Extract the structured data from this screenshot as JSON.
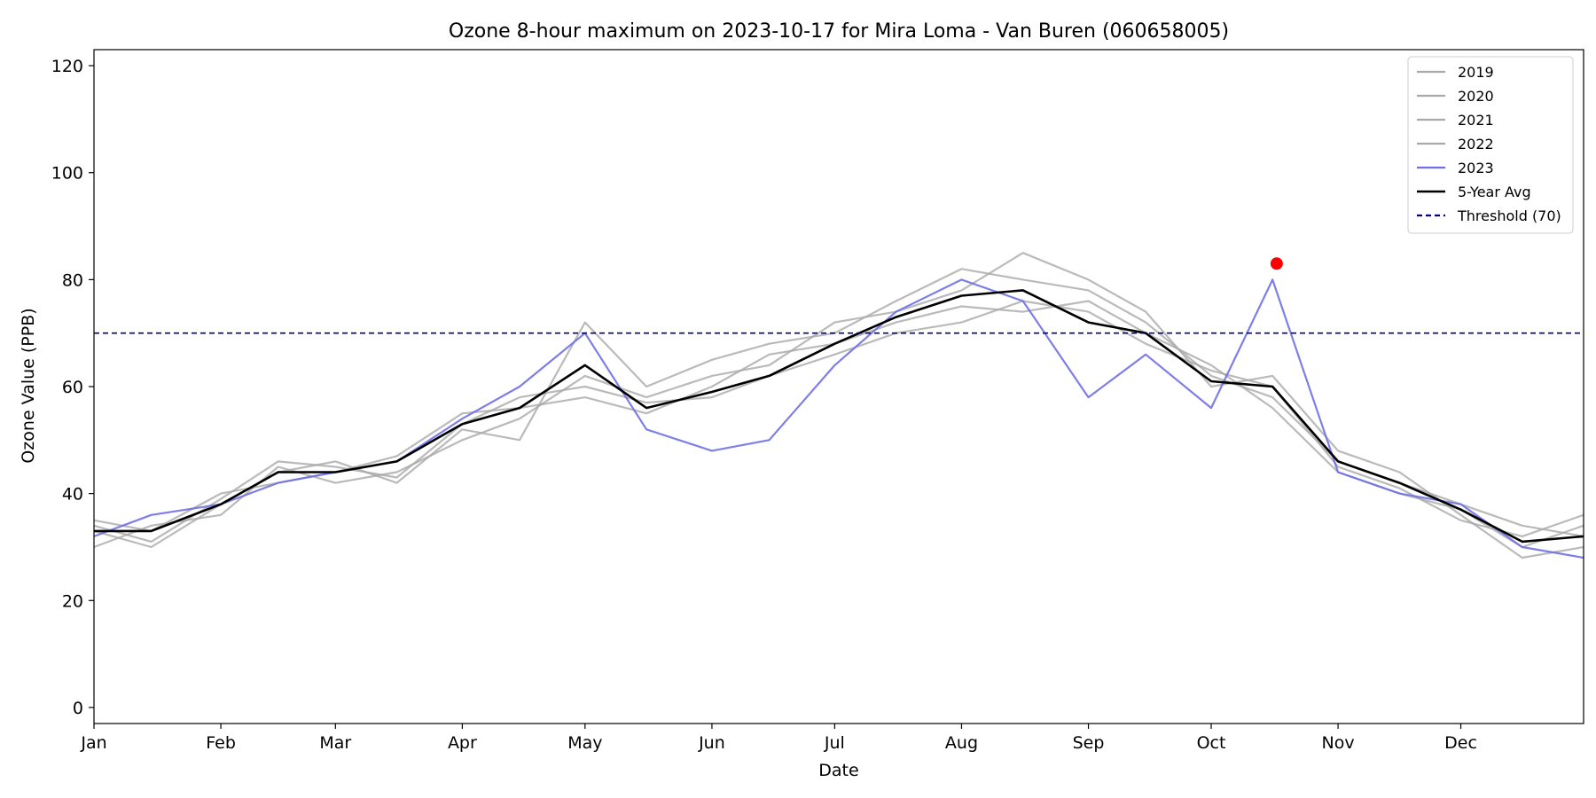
{
  "chart_data": {
    "type": "line",
    "title": "Ozone 8-hour maximum on 2023-10-17 for Mira Loma - Van Buren (060658005)",
    "xlabel": "Date",
    "ylabel": "Ozone Value (PPB)",
    "x_unit": "day of year (2023 calendar)",
    "xlim": [
      1,
      365
    ],
    "ylim": [
      -3,
      123
    ],
    "x_ticks": [
      {
        "label": "Jan",
        "day": 1
      },
      {
        "label": "Feb",
        "day": 32
      },
      {
        "label": "Mar",
        "day": 60
      },
      {
        "label": "Apr",
        "day": 91
      },
      {
        "label": "May",
        "day": 121
      },
      {
        "label": "Jun",
        "day": 152
      },
      {
        "label": "Jul",
        "day": 182
      },
      {
        "label": "Aug",
        "day": 213
      },
      {
        "label": "Sep",
        "day": 244
      },
      {
        "label": "Oct",
        "day": 274
      },
      {
        "label": "Nov",
        "day": 305
      },
      {
        "label": "Dec",
        "day": 335
      }
    ],
    "y_ticks": [
      0,
      20,
      40,
      60,
      80,
      100,
      120
    ],
    "grid": false,
    "legend_position": "top-right",
    "series": [
      {
        "name": "2019",
        "color": "#a9a9a9",
        "style": "solid",
        "x": [
          1,
          15,
          32,
          46,
          60,
          75,
          91,
          105,
          121,
          136,
          152,
          166,
          182,
          197,
          213,
          228,
          244,
          258,
          274,
          289,
          305,
          320,
          335,
          350,
          365
        ],
        "y": [
          33,
          30,
          38,
          44,
          46,
          42,
          52,
          50,
          72,
          60,
          65,
          68,
          70,
          76,
          82,
          80,
          78,
          72,
          62,
          58,
          46,
          42,
          38,
          34,
          32
        ]
      },
      {
        "name": "2020",
        "color": "#a9a9a9",
        "style": "solid",
        "x": [
          1,
          15,
          32,
          46,
          60,
          75,
          91,
          105,
          121,
          136,
          152,
          166,
          182,
          197,
          213,
          228,
          244,
          258,
          274,
          289,
          305,
          320,
          335,
          350,
          365
        ],
        "y": [
          35,
          33,
          40,
          42,
          44,
          47,
          55,
          56,
          58,
          55,
          60,
          66,
          68,
          72,
          75,
          74,
          76,
          70,
          64,
          56,
          44,
          40,
          37,
          30,
          34
        ]
      },
      {
        "name": "2021",
        "color": "#a9a9a9",
        "style": "solid",
        "x": [
          1,
          15,
          32,
          46,
          60,
          75,
          91,
          105,
          121,
          136,
          152,
          166,
          182,
          197,
          213,
          228,
          244,
          258,
          274,
          289,
          305,
          320,
          335,
          350,
          365
        ],
        "y": [
          30,
          34,
          36,
          45,
          42,
          44,
          50,
          54,
          62,
          58,
          62,
          64,
          72,
          74,
          78,
          85,
          80,
          74,
          60,
          62,
          48,
          44,
          36,
          28,
          30
        ]
      },
      {
        "name": "2022",
        "color": "#a9a9a9",
        "style": "solid",
        "x": [
          1,
          15,
          32,
          46,
          60,
          75,
          91,
          105,
          121,
          136,
          152,
          166,
          182,
          197,
          213,
          228,
          244,
          258,
          274,
          289,
          305,
          320,
          335,
          350,
          365
        ],
        "y": [
          34,
          31,
          39,
          46,
          45,
          43,
          53,
          58,
          60,
          57,
          58,
          62,
          66,
          70,
          72,
          76,
          74,
          68,
          63,
          60,
          45,
          41,
          35,
          32,
          36
        ]
      },
      {
        "name": "2023",
        "color": "#7070e6",
        "style": "solid",
        "x": [
          1,
          15,
          32,
          46,
          60,
          75,
          91,
          105,
          121,
          136,
          152,
          166,
          182,
          197,
          213,
          228,
          244,
          258,
          274,
          289,
          305,
          320,
          335,
          350,
          365
        ],
        "y": [
          32,
          36,
          38,
          42,
          44,
          46,
          54,
          60,
          70,
          52,
          48,
          50,
          64,
          74,
          80,
          76,
          58,
          66,
          56,
          80,
          44,
          40,
          38,
          30,
          28
        ]
      },
      {
        "name": "5-Year Avg",
        "color": "#000000",
        "style": "solid",
        "x": [
          1,
          15,
          32,
          46,
          60,
          75,
          91,
          105,
          121,
          136,
          152,
          166,
          182,
          197,
          213,
          228,
          244,
          258,
          274,
          289,
          305,
          320,
          335,
          350,
          365
        ],
        "y": [
          33,
          33,
          38,
          44,
          44,
          46,
          53,
          56,
          64,
          56,
          59,
          62,
          68,
          73,
          77,
          78,
          72,
          70,
          61,
          60,
          46,
          42,
          37,
          31,
          32
        ]
      },
      {
        "name": "Threshold (70)",
        "color": "#000080",
        "style": "dashed",
        "x": [
          1,
          365
        ],
        "y": [
          70,
          70
        ]
      }
    ],
    "highlight_point": {
      "date": "2023-10-17",
      "x": 290,
      "y": 83,
      "color": "#ff0000"
    }
  }
}
